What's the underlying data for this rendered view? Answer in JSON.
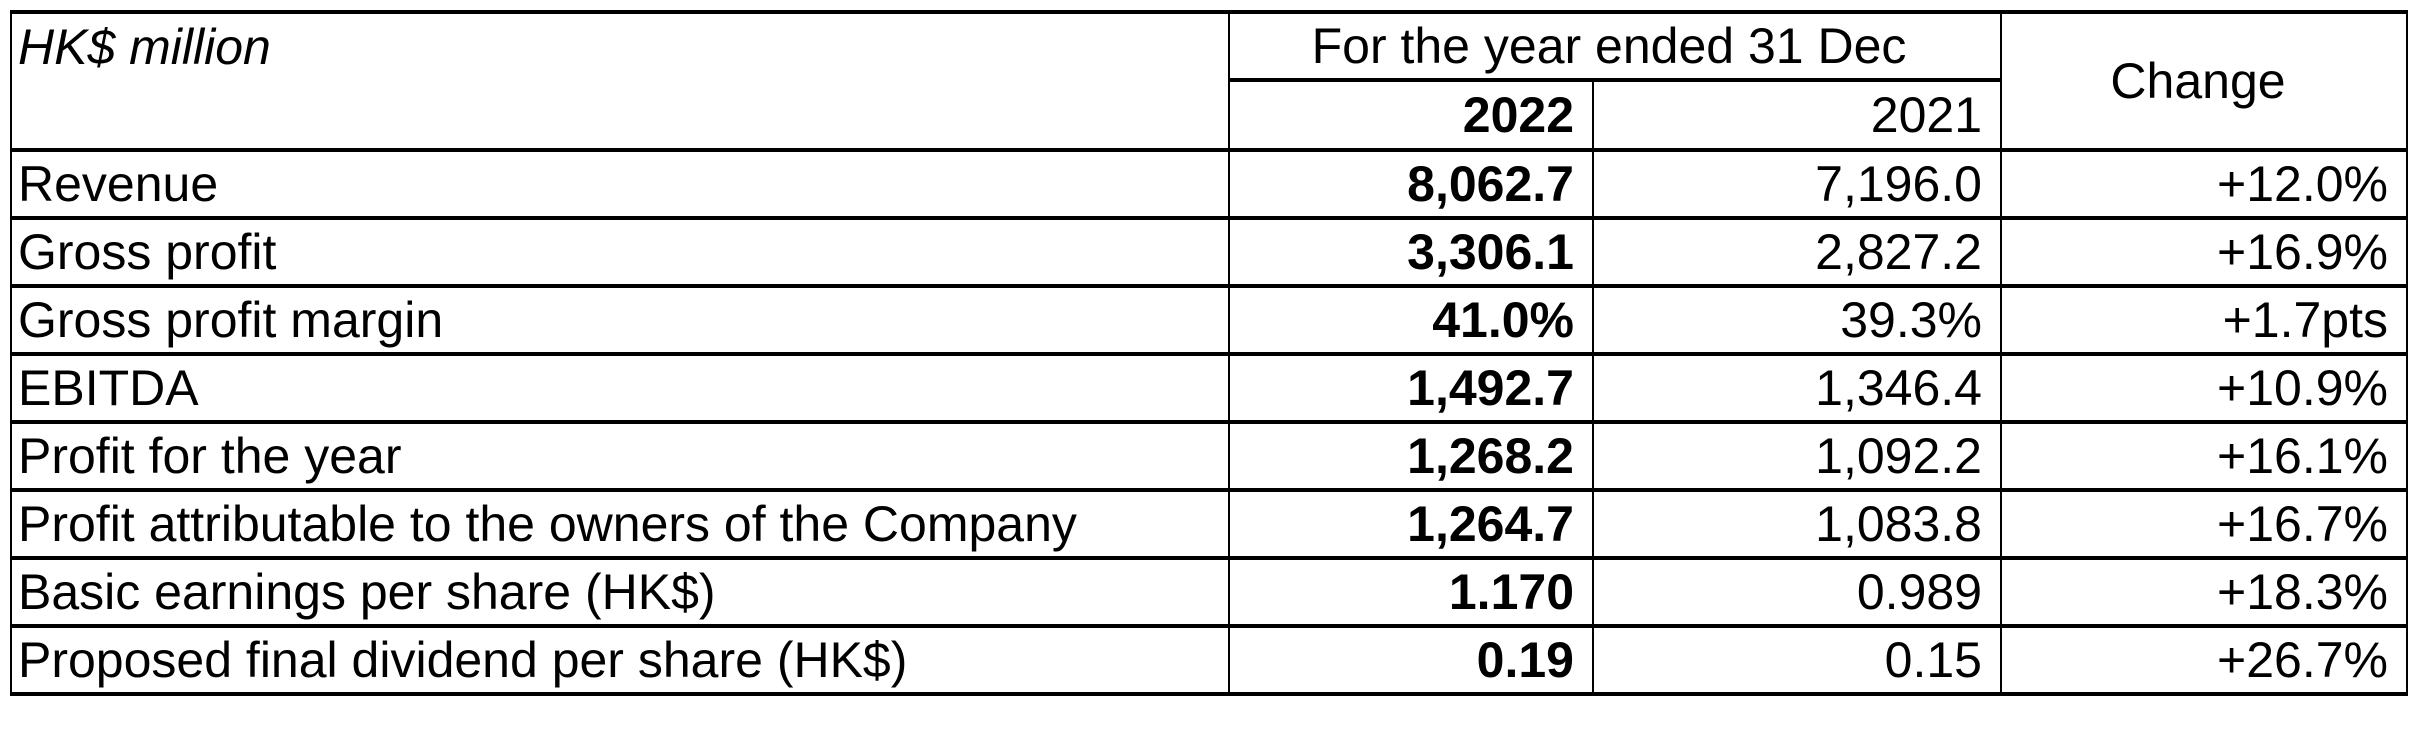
{
  "table": {
    "unit_label": "HK$ million",
    "period_header": "For the year ended 31 Dec",
    "change_header": "Change",
    "year_current": "2022",
    "year_prior": "2021",
    "rows": [
      {
        "label": "Revenue",
        "current": "8,062.7",
        "prior": "7,196.0",
        "change": "+12.0%"
      },
      {
        "label": "Gross profit",
        "current": "3,306.1",
        "prior": "2,827.2",
        "change": "+16.9%"
      },
      {
        "label": "Gross profit margin",
        "current": "41.0%",
        "prior": "39.3%",
        "change": "+1.7pts"
      },
      {
        "label": "EBITDA",
        "current": "1,492.7",
        "prior": "1,346.4",
        "change": "+10.9%"
      },
      {
        "label": "Profit for the year",
        "current": "1,268.2",
        "prior": "1,092.2",
        "change": "+16.1%"
      },
      {
        "label": "Profit attributable to the owners of the Company",
        "current": "1,264.7",
        "prior": "1,083.8",
        "change": "+16.7%"
      },
      {
        "label": "Basic earnings per share (HK$)",
        "current": "1.170",
        "prior": "0.989",
        "change": "+18.3%"
      },
      {
        "label": "Proposed final dividend per share (HK$)",
        "current": "0.19",
        "prior": "0.15",
        "change": "+26.7%"
      }
    ]
  }
}
